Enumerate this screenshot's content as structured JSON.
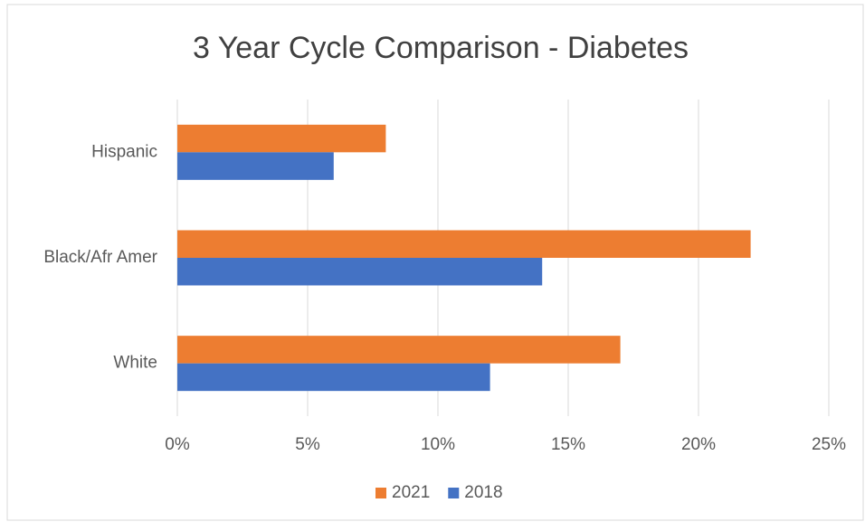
{
  "chart_data": {
    "type": "hbar",
    "title": "3 Year Cycle Comparison - Diabetes",
    "categories": [
      "Hispanic",
      "Black/Afr Amer",
      "White"
    ],
    "series": [
      {
        "name": "2021",
        "color": "#ed7d31",
        "values": [
          8,
          22,
          17
        ]
      },
      {
        "name": "2018",
        "color": "#4472c4",
        "values": [
          6,
          14,
          12
        ]
      }
    ],
    "xlim": [
      0,
      25
    ],
    "xticks": [
      {
        "value": 0,
        "label": "0%"
      },
      {
        "value": 5,
        "label": "5%"
      },
      {
        "value": 10,
        "label": "10%"
      },
      {
        "value": 15,
        "label": "15%"
      },
      {
        "value": 20,
        "label": "20%"
      },
      {
        "value": 25,
        "label": "25%"
      }
    ],
    "grid": true,
    "legend": "bottom"
  }
}
